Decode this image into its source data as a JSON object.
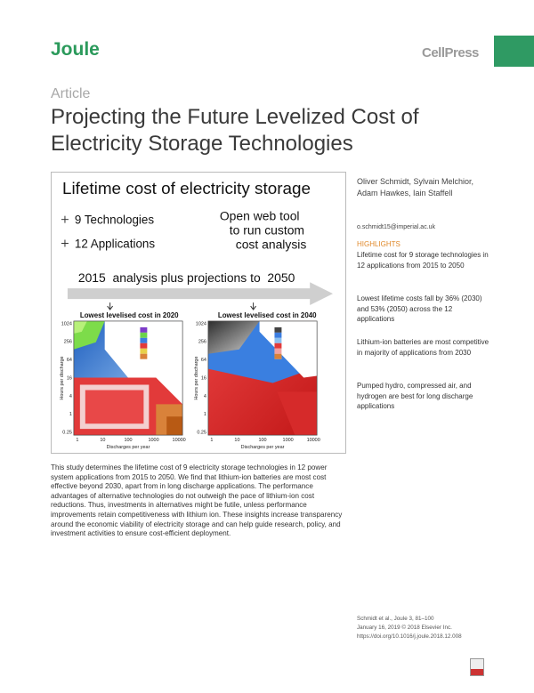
{
  "header": {
    "journal": "Joule",
    "publisher": "CellPress"
  },
  "article_type": "Article",
  "title": "Projecting the Future Levelized Cost of Electricity Storage Technologies",
  "graphical_abstract": {
    "title": "Lifetime cost of electricity storage",
    "items": [
      "9 Technologies",
      "12 Applications"
    ],
    "web_tool": [
      "Open web tool",
      "to run custom",
      "cost analysis"
    ],
    "timeline": "2015  analysis plus projections to  2050",
    "panels": [
      "Lowest levelised cost in 2020",
      "Lowest levelised cost in 2040"
    ],
    "x_axis_label": "Discharges per year",
    "y_axis_label": "Hours per discharge",
    "x_ticks": [
      "1",
      "10",
      "100",
      "1000",
      "10000"
    ],
    "y_ticks": [
      "1024",
      "256",
      "64",
      "16",
      "4",
      "1",
      "0.25"
    ]
  },
  "summary": "This study determines the lifetime cost of 9 electricity storage technologies in 12 power system applications from 2015 to 2050. We find that lithium-ion batteries are most cost effective beyond 2030, apart from in long discharge applications. The performance advantages of alternative technologies do not outweigh the pace of lithium-ion cost reductions. Thus, investments in alternatives might be futile, unless performance improvements retain competitiveness with lithium ion. These insights increase transparency around the economic viability of electricity storage and can help guide research, policy, and investment activities to ensure cost-efficient deployment.",
  "authors": "Oliver Schmidt, Sylvain Melchior, Adam Hawkes, Iain Staffell",
  "email": "o.schmidt15@imperial.ac.uk",
  "highlights_heading": "HIGHLIGHTS",
  "highlights": [
    "Lifetime cost for 9 storage technologies in 12 applications from 2015 to 2050",
    "Lowest lifetime costs fall by 36% (2030) and 53% (2050) across the 12 applications",
    "Lithium-ion batteries are most competitive in majority of applications from 2030",
    "Pumped hydro, compressed air, and hydrogen are best for long discharge applications"
  ],
  "citation": [
    "Schmidt et al., Joule 3, 81–100",
    "January 16, 2019 © 2018 Elsevier Inc.",
    "https://doi.org/10.1016/j.joule.2018.12.008"
  ]
}
